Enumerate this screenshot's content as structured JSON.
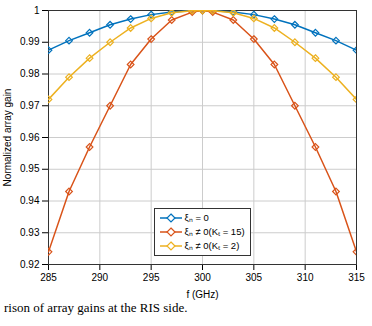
{
  "chart_data": {
    "type": "line",
    "xlabel": "f (GHz)",
    "ylabel": "Normalized array gain",
    "caption": "rison of array gains at the RIS side.",
    "x": [
      285,
      287,
      289,
      291,
      293,
      295,
      297,
      299,
      300,
      301,
      303,
      305,
      307,
      309,
      311,
      313,
      315
    ],
    "series": [
      {
        "name": "ξₙ = 0",
        "color": "#0072BD",
        "marker": "diamond",
        "values": [
          0.9875,
          0.9905,
          0.993,
          0.9955,
          0.9973,
          0.9987,
          0.9995,
          0.99995,
          1,
          0.99995,
          0.9995,
          0.9987,
          0.9973,
          0.9955,
          0.993,
          0.9905,
          0.9875
        ]
      },
      {
        "name": "ξₙ ≠ 0(Kₜ = 15)",
        "color": "#D95319",
        "marker": "diamond",
        "values": [
          0.924,
          0.943,
          0.957,
          0.97,
          0.983,
          0.991,
          0.997,
          0.9995,
          1,
          0.9995,
          0.997,
          0.991,
          0.983,
          0.97,
          0.957,
          0.943,
          0.924
        ]
      },
      {
        "name": "ξₙ ≠ 0(Kₜ = 2)",
        "color": "#EDB120",
        "marker": "diamond",
        "values": [
          0.972,
          0.979,
          0.985,
          0.99,
          0.9945,
          0.9975,
          0.9993,
          0.99995,
          1,
          0.99995,
          0.9993,
          0.9975,
          0.9945,
          0.99,
          0.985,
          0.979,
          0.972
        ]
      }
    ],
    "xlim": [
      285,
      315
    ],
    "xticks": [
      285,
      290,
      295,
      300,
      305,
      310,
      315
    ],
    "ylim": [
      0.92,
      1
    ],
    "yticks": [
      0.92,
      0.93,
      0.94,
      0.95,
      0.96,
      0.97,
      0.98,
      0.99,
      1
    ],
    "grid": true,
    "legend": "bottom"
  }
}
